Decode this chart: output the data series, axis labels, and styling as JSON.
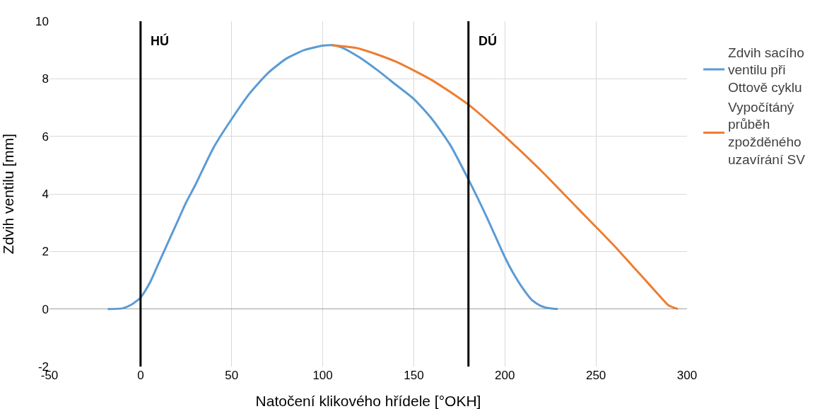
{
  "chart_data": {
    "type": "line",
    "xlabel": "Natočení klikového hřídele [°OKH]",
    "ylabel": "Zdvih ventilu [mm]",
    "xlim": [
      -50,
      300
    ],
    "xticks": [
      -50,
      0,
      50,
      100,
      150,
      200,
      250,
      300
    ],
    "ylim": [
      -2,
      10
    ],
    "yticks": [
      -2,
      0,
      2,
      4,
      6,
      8,
      10
    ],
    "grid": true,
    "legend": "right",
    "marker": "none",
    "line_style": "solid",
    "series": [
      {
        "name": "Zdvih sacího ventilu při Ottově cyklu",
        "color": "#5b9bd5",
        "x": [
          -18,
          -10,
          -5,
          0,
          5,
          10,
          15,
          20,
          25,
          30,
          40,
          50,
          60,
          70,
          80,
          90,
          100,
          105,
          110,
          120,
          130,
          140,
          150,
          160,
          170,
          180,
          190,
          200,
          205,
          210,
          215,
          220,
          225,
          229
        ],
        "values": [
          0,
          0.02,
          0.15,
          0.4,
          0.9,
          1.6,
          2.3,
          3.0,
          3.7,
          4.3,
          5.6,
          6.6,
          7.5,
          8.2,
          8.7,
          9.0,
          9.15,
          9.17,
          9.1,
          8.75,
          8.3,
          7.8,
          7.3,
          6.6,
          5.7,
          4.5,
          3.2,
          1.8,
          1.2,
          0.7,
          0.3,
          0.1,
          0.02,
          0
        ]
      },
      {
        "name": "Vypočítáný průběh zpožděného uzavírání SV",
        "color": "#ed7d31",
        "x": [
          105,
          120,
          140,
          160,
          180,
          200,
          220,
          240,
          260,
          270,
          280,
          285,
          290,
          295
        ],
        "values": [
          9.17,
          9.05,
          8.6,
          7.95,
          7.1,
          6.0,
          4.8,
          3.5,
          2.2,
          1.5,
          0.8,
          0.45,
          0.12,
          0
        ]
      }
    ],
    "ref_lines": [
      {
        "axis": "x",
        "value": 0,
        "label": "HÚ",
        "color": "#000000"
      },
      {
        "axis": "x",
        "value": 180,
        "label": "DÚ",
        "color": "#000000"
      }
    ]
  }
}
